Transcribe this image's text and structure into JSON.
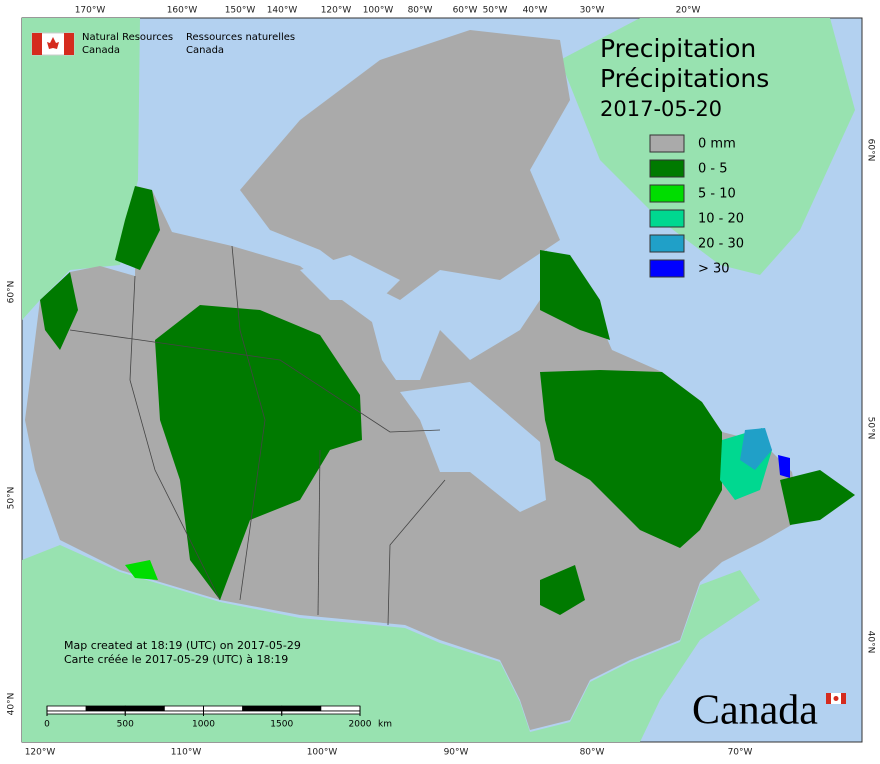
{
  "header": {
    "agency_en": [
      "Natural Resources",
      "Canada"
    ],
    "agency_fr": [
      "Ressources naturelles",
      "Canada"
    ]
  },
  "title": [
    "Precipitation",
    "Précipitations"
  ],
  "date": "2017-05-20",
  "legend": [
    {
      "label": "0 mm",
      "color": "#aaaaaa"
    },
    {
      "label": "0 - 5",
      "color": "#007a00"
    },
    {
      "label": "5 - 10",
      "color": "#00dd00"
    },
    {
      "label": "10 - 20",
      "color": "#00d890"
    },
    {
      "label": "20 - 30",
      "color": "#20a0c8"
    },
    {
      "label": "> 30",
      "color": "#0000ff"
    }
  ],
  "notes": [
    "Map created at 18:19 (UTC) on 2017-05-29",
    "Carte créée le 2017-05-29 (UTC) à 18:19"
  ],
  "scale_bar": {
    "ticks": [
      0,
      500,
      1000,
      1500,
      2000
    ],
    "unit": "km"
  },
  "top_longitudes": [
    "170°W",
    "160°W",
    "150°W",
    "140°W",
    "120°W",
    "100°W",
    "80°W",
    "60°W",
    "50°W",
    "40°W",
    "30°W",
    "20°W"
  ],
  "bottom_longitudes": [
    "120°W",
    "110°W",
    "100°W",
    "90°W",
    "80°W",
    "70°W"
  ],
  "left_latitudes": [
    "60°N",
    "50°N",
    "40°N"
  ],
  "right_latitudes": [
    "60°N",
    "50°N",
    "40°N"
  ],
  "wordmark": "Canada"
}
